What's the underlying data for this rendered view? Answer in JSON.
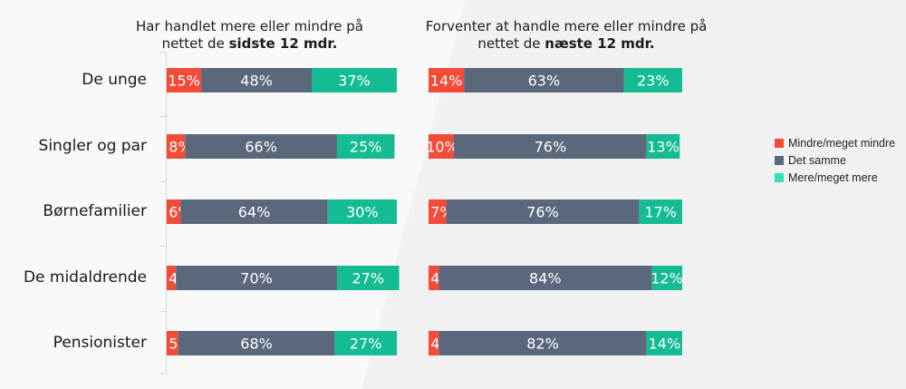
{
  "chart_data": [
    {
      "type": "bar",
      "stacked": true,
      "orientation": "horizontal",
      "title_prefix": "Har handlet mere eller mindre på nettet de ",
      "title_bold": "sidste 12 mdr.",
      "categories": [
        "De unge",
        "Singler og par",
        "Børnefamilier",
        "De midaldrende",
        "Pensionister"
      ],
      "series": [
        {
          "name": "Mindre/meget mindre",
          "values": [
            15,
            8,
            6,
            4,
            5
          ]
        },
        {
          "name": "Det samme",
          "values": [
            48,
            66,
            64,
            70,
            68
          ]
        },
        {
          "name": "Mere/meget mere",
          "values": [
            37,
            25,
            30,
            27,
            27
          ]
        }
      ],
      "xlim": [
        0,
        100
      ]
    },
    {
      "type": "bar",
      "stacked": true,
      "orientation": "horizontal",
      "title_prefix": "Forventer at handle mere eller mindre på nettet de ",
      "title_bold": "næste 12 mdr.",
      "categories": [
        "De unge",
        "Singler og par",
        "Børnefamilier",
        "De midaldrende",
        "Pensionister"
      ],
      "series": [
        {
          "name": "Mindre/meget mindre",
          "values": [
            14,
            10,
            7,
            4,
            4
          ]
        },
        {
          "name": "Det samme",
          "values": [
            63,
            76,
            76,
            84,
            82
          ]
        },
        {
          "name": "Mere/meget mere",
          "values": [
            23,
            13,
            17,
            12,
            14
          ]
        }
      ],
      "xlim": [
        0,
        100
      ]
    }
  ],
  "legend": {
    "position": "right",
    "items": [
      {
        "label": "Mindre/meget mindre",
        "color": "#f44a38"
      },
      {
        "label": "Det samme",
        "color": "#5b687c"
      },
      {
        "label": "Mere/meget mere",
        "color": "#14bb93"
      }
    ]
  },
  "colors": {
    "less": "#f44a38",
    "same": "#5b687c",
    "more": "#14bb93"
  }
}
